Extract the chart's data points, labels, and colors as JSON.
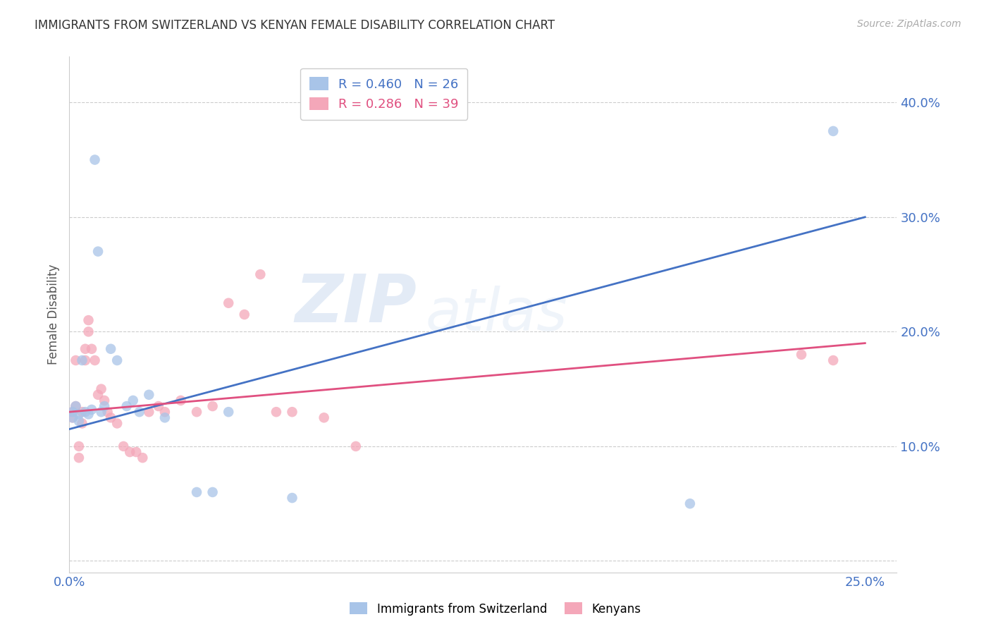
{
  "title": "IMMIGRANTS FROM SWITZERLAND VS KENYAN FEMALE DISABILITY CORRELATION CHART",
  "source": "Source: ZipAtlas.com",
  "ylabel_label": "Female Disability",
  "x_ticks": [
    0.0,
    0.05,
    0.1,
    0.15,
    0.2,
    0.25
  ],
  "x_tick_labels": [
    "0.0%",
    "",
    "",
    "",
    "",
    "25.0%"
  ],
  "y_ticks": [
    0.0,
    0.1,
    0.2,
    0.3,
    0.4
  ],
  "y_tick_labels": [
    "",
    "10.0%",
    "20.0%",
    "30.0%",
    "40.0%"
  ],
  "xlim": [
    0.0,
    0.26
  ],
  "ylim": [
    -0.01,
    0.44
  ],
  "legend_labels_bottom": [
    "Immigrants from Switzerland",
    "Kenyans"
  ],
  "watermark_line1": "ZIP",
  "watermark_line2": "atlas",
  "blue_scatter_x": [
    0.001,
    0.001,
    0.002,
    0.003,
    0.003,
    0.004,
    0.005,
    0.006,
    0.007,
    0.008,
    0.009,
    0.01,
    0.011,
    0.013,
    0.015,
    0.018,
    0.02,
    0.022,
    0.025,
    0.03,
    0.04,
    0.045,
    0.05,
    0.07,
    0.195,
    0.24
  ],
  "blue_scatter_y": [
    0.13,
    0.125,
    0.135,
    0.128,
    0.122,
    0.175,
    0.13,
    0.128,
    0.132,
    0.35,
    0.27,
    0.13,
    0.135,
    0.185,
    0.175,
    0.135,
    0.14,
    0.13,
    0.145,
    0.125,
    0.06,
    0.06,
    0.13,
    0.055,
    0.05,
    0.375
  ],
  "pink_scatter_x": [
    0.001,
    0.001,
    0.002,
    0.002,
    0.003,
    0.003,
    0.004,
    0.004,
    0.005,
    0.005,
    0.006,
    0.006,
    0.007,
    0.008,
    0.009,
    0.01,
    0.011,
    0.012,
    0.013,
    0.015,
    0.017,
    0.019,
    0.021,
    0.023,
    0.025,
    0.028,
    0.03,
    0.035,
    0.04,
    0.045,
    0.05,
    0.055,
    0.06,
    0.065,
    0.07,
    0.08,
    0.09,
    0.23,
    0.24
  ],
  "pink_scatter_y": [
    0.13,
    0.125,
    0.135,
    0.175,
    0.1,
    0.09,
    0.13,
    0.12,
    0.175,
    0.185,
    0.21,
    0.2,
    0.185,
    0.175,
    0.145,
    0.15,
    0.14,
    0.13,
    0.125,
    0.12,
    0.1,
    0.095,
    0.095,
    0.09,
    0.13,
    0.135,
    0.13,
    0.14,
    0.13,
    0.135,
    0.225,
    0.215,
    0.25,
    0.13,
    0.13,
    0.125,
    0.1,
    0.18,
    0.175
  ],
  "blue_line_x": [
    0.0,
    0.25
  ],
  "blue_line_y": [
    0.115,
    0.3
  ],
  "pink_line_x": [
    0.0,
    0.25
  ],
  "pink_line_y": [
    0.13,
    0.19
  ],
  "blue_line_color": "#4472c4",
  "pink_line_color": "#e05080",
  "blue_dot_color": "#a8c4e8",
  "pink_dot_color": "#f4a7b9",
  "dot_size": 110,
  "grid_color": "#cccccc",
  "tick_label_color": "#4472c4",
  "axis_color": "#cccccc",
  "title_color": "#333333",
  "background_color": "#ffffff"
}
